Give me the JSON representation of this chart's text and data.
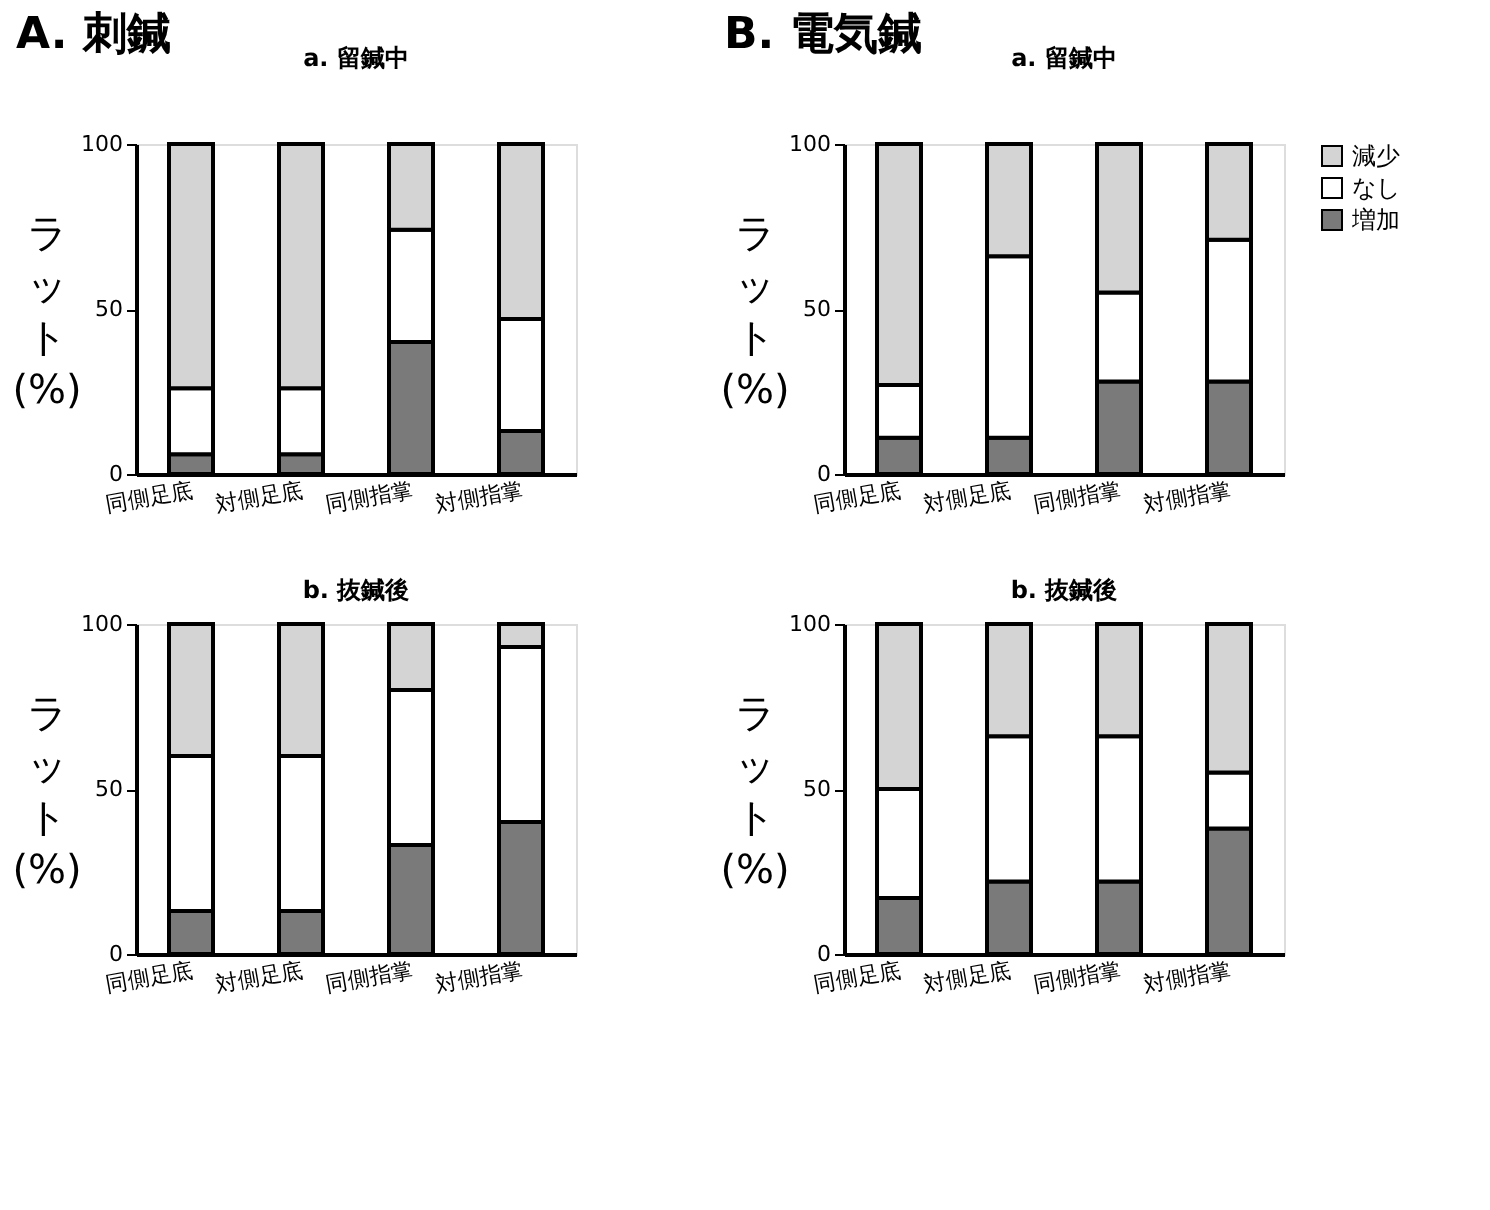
{
  "chart_data": [
    {
      "type": "bar",
      "stacked": true,
      "annotations": [
        "A. 刺鍼"
      ],
      "title": "a. 留鍼中",
      "ylabel": "ラット (%)",
      "categories": [
        "同側足底",
        "対側足底",
        "同側指掌",
        "対側指掌"
      ],
      "ylim": [
        0,
        100
      ],
      "yticks": [
        0,
        50,
        100
      ],
      "grid": false,
      "legend": false,
      "series": [
        {
          "color": "#7a7a7a",
          "values": [
            6,
            6,
            40,
            13
          ]
        },
        {
          "color": "#ffffff",
          "values": [
            20,
            20,
            34,
            34
          ]
        },
        {
          "color": "#d4d4d4",
          "values": [
            74,
            74,
            26,
            53
          ]
        }
      ]
    },
    {
      "type": "bar",
      "stacked": true,
      "annotations": [
        "B. 電気鍼"
      ],
      "title": "a. 留鍼中",
      "ylabel": "ラット (%)",
      "categories": [
        "同側足底",
        "対側足底",
        "同側指掌",
        "対側指掌"
      ],
      "ylim": [
        0,
        100
      ],
      "yticks": [
        0,
        50,
        100
      ],
      "grid": false,
      "legend": "right",
      "series": [
        {
          "name": "増加",
          "color": "#7a7a7a",
          "values": [
            11,
            11,
            28,
            28
          ]
        },
        {
          "name": "なし",
          "color": "#ffffff",
          "values": [
            16,
            55,
            27,
            43
          ]
        },
        {
          "name": "減少",
          "color": "#d4d4d4",
          "values": [
            73,
            34,
            45,
            29
          ]
        }
      ]
    },
    {
      "type": "bar",
      "stacked": true,
      "title": "b. 抜鍼後",
      "ylabel": "ラット (%)",
      "categories": [
        "同側足底",
        "対側足底",
        "同側指掌",
        "対側指掌"
      ],
      "ylim": [
        0,
        100
      ],
      "yticks": [
        0,
        50,
        100
      ],
      "grid": false,
      "legend": false,
      "series": [
        {
          "color": "#7a7a7a",
          "values": [
            13,
            13,
            33,
            40
          ]
        },
        {
          "color": "#ffffff",
          "values": [
            47,
            47,
            47,
            53
          ]
        },
        {
          "color": "#d4d4d4",
          "values": [
            40,
            40,
            20,
            7
          ]
        }
      ]
    },
    {
      "type": "bar",
      "stacked": true,
      "title": "b. 抜鍼後",
      "ylabel": "ラット (%)",
      "categories": [
        "同側足底",
        "対側足底",
        "同側指掌",
        "対側指掌"
      ],
      "ylim": [
        0,
        100
      ],
      "yticks": [
        0,
        50,
        100
      ],
      "grid": false,
      "legend": false,
      "series": [
        {
          "color": "#7a7a7a",
          "values": [
            17,
            22,
            22,
            38
          ]
        },
        {
          "color": "#ffffff",
          "values": [
            33,
            44,
            44,
            17
          ]
        },
        {
          "color": "#d4d4d4",
          "values": [
            50,
            34,
            34,
            45
          ]
        }
      ]
    }
  ]
}
